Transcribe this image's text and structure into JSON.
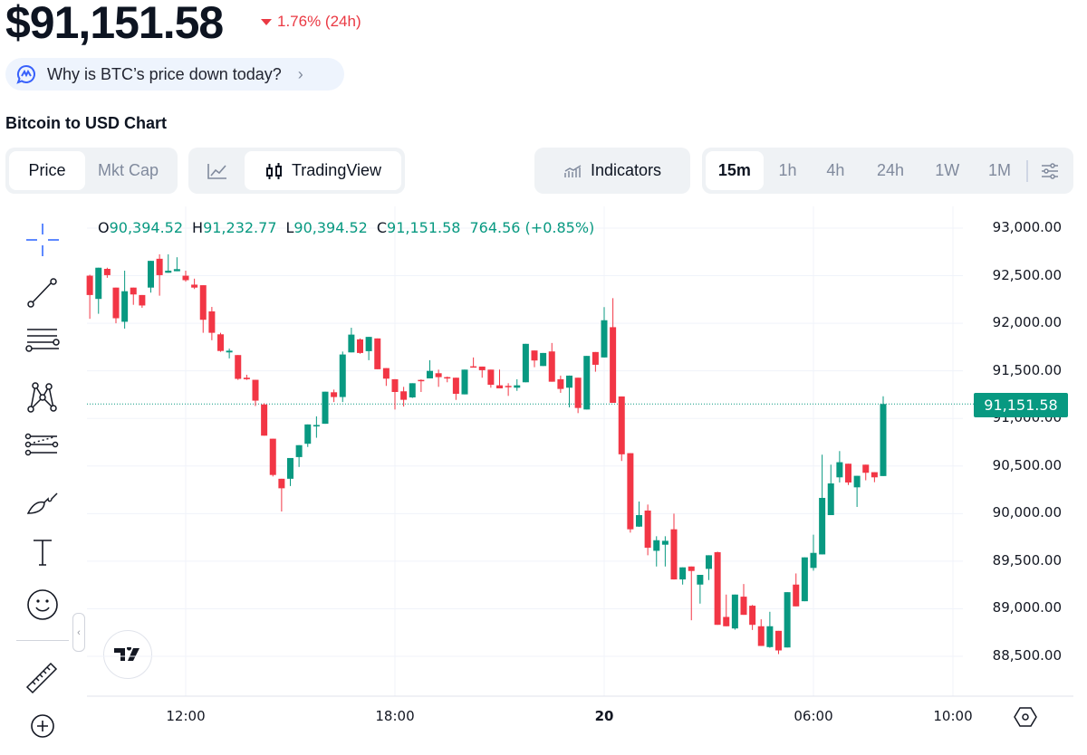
{
  "header": {
    "price": "$91,151.58",
    "change": "1.76% (24h)",
    "change_direction": "down",
    "why_link": "Why is BTC’s price down today?",
    "chart_title": "Bitcoin to USD Chart"
  },
  "toolbar": {
    "data_tabs": [
      "Price",
      "Mkt Cap"
    ],
    "active_data_tab": "Price",
    "chart_types": {
      "line_icon": "line-chart-icon",
      "tradingview": "TradingView"
    },
    "indicators": "Indicators",
    "ranges": [
      "15m",
      "1h",
      "4h",
      "24h",
      "1W",
      "1M"
    ],
    "active_range": "15m",
    "settings_icon": "sliders-icon"
  },
  "drawing_tools": [
    "crosshair-icon",
    "trend-line-icon",
    "horizontal-lines-icon",
    "pattern-icon",
    "fib-icon",
    "brush-icon",
    "text-icon",
    "emoji-icon",
    "ruler-icon",
    "zoom-in-icon"
  ],
  "legend": {
    "o_label": "O",
    "o": "90,394.52",
    "h_label": "H",
    "h": "91,232.77",
    "l_label": "L",
    "l": "90,394.52",
    "c_label": "C",
    "c": "91,151.58",
    "change": "764.56 (+0.85%)"
  },
  "current_price_label": "91,151.58",
  "colors": {
    "up": "#089981",
    "down": "#F23645",
    "change_down": "#ea3943"
  },
  "chart_data": {
    "type": "candlestick",
    "interval": "15m",
    "start_time": "09:15",
    "y_ticks": [
      "93,000.00",
      "92,500.00",
      "92,000.00",
      "91,500.00",
      "91,000.00",
      "90,500.00",
      "90,000.00",
      "89,500.00",
      "89,000.00",
      "88,500.00"
    ],
    "ylim": [
      88300,
      93200
    ],
    "x_ticks": [
      {
        "label": "12:00",
        "index": 11
      },
      {
        "label": "18:00",
        "index": 35
      },
      {
        "label": "20",
        "index": 59
      },
      {
        "label": "06:00",
        "index": 83
      },
      {
        "label": "10:00",
        "index": 99
      }
    ],
    "ohlc": [
      [
        92500,
        92510,
        92047,
        92297
      ],
      [
        92256,
        92584,
        92100,
        92584
      ],
      [
        92572,
        92584,
        92478,
        92506
      ],
      [
        92375,
        92375,
        92000,
        92053
      ],
      [
        92016,
        92553,
        91944,
        92337
      ],
      [
        92375,
        92375,
        92194,
        92303
      ],
      [
        92297,
        92297,
        92162,
        92187
      ],
      [
        92375,
        92656,
        92322,
        92656
      ],
      [
        92678,
        92725,
        92290,
        92506
      ],
      [
        92531,
        92725,
        92531,
        92553
      ],
      [
        92547,
        92694,
        92547,
        92569
      ],
      [
        92500,
        92553,
        92437,
        92453
      ],
      [
        92406,
        92469,
        92360,
        92375
      ],
      [
        92400,
        92400,
        91900,
        92037
      ],
      [
        92125,
        92172,
        91822,
        91900
      ],
      [
        91884,
        91900,
        91700,
        91709
      ],
      [
        91694,
        91734,
        91631,
        91712
      ],
      [
        91666,
        91666,
        91405,
        91416
      ],
      [
        91428,
        91459,
        91405,
        91412
      ],
      [
        91406,
        91406,
        91131,
        91187
      ],
      [
        91147,
        91160,
        90819,
        90819
      ],
      [
        90787,
        90787,
        90390,
        90406
      ],
      [
        90366,
        90366,
        90022,
        90266
      ],
      [
        90366,
        90584,
        90290,
        90584
      ],
      [
        90594,
        90719,
        90490,
        90719
      ],
      [
        90734,
        90937,
        90700,
        90937
      ],
      [
        90916,
        91022,
        90797,
        90931
      ],
      [
        90944,
        91281,
        90944,
        91281
      ],
      [
        91275,
        91303,
        91172,
        91225
      ],
      [
        91225,
        91703,
        91172,
        91672
      ],
      [
        91694,
        91953,
        91694,
        91881
      ],
      [
        91831,
        91840,
        91680,
        91688
      ],
      [
        91707,
        91857,
        91612,
        91857
      ],
      [
        91841,
        91841,
        91517,
        91517
      ],
      [
        91529,
        91529,
        91342,
        91418
      ],
      [
        91412,
        91412,
        91094,
        91278
      ],
      [
        91285,
        91332,
        91125,
        91196
      ],
      [
        91221,
        91370,
        91215,
        91370
      ],
      [
        91405,
        91410,
        91278,
        91400
      ],
      [
        91421,
        91612,
        91421,
        91500
      ],
      [
        91475,
        91513,
        91332,
        91434
      ],
      [
        91434,
        91440,
        91380,
        91427
      ],
      [
        91428,
        91428,
        91195,
        91259
      ],
      [
        91253,
        91513,
        91253,
        91513
      ],
      [
        91548,
        91641,
        91540,
        91545
      ],
      [
        91545,
        91545,
        91428,
        91507
      ],
      [
        91513,
        91513,
        91323,
        91354
      ],
      [
        91348,
        91513,
        91316,
        91316
      ],
      [
        91342,
        91370,
        91237,
        91338
      ],
      [
        91323,
        91412,
        91290,
        91348
      ],
      [
        91380,
        91784,
        91380,
        91784
      ],
      [
        91714,
        91714,
        91538,
        91609
      ],
      [
        91551,
        91688,
        91551,
        91688
      ],
      [
        91704,
        91793,
        91386,
        91386
      ],
      [
        91412,
        91450,
        91269,
        91310
      ],
      [
        91323,
        91450,
        91116,
        91450
      ],
      [
        91428,
        91428,
        91056,
        91110
      ],
      [
        91094,
        91657,
        91094,
        91657
      ],
      [
        91698,
        91698,
        91491,
        91564
      ],
      [
        91641,
        92170,
        91641,
        92032
      ],
      [
        91959,
        92264,
        91164,
        91164
      ],
      [
        91231,
        91231,
        90553,
        90623
      ],
      [
        90635,
        90635,
        89800,
        89835
      ],
      [
        89863,
        90127,
        89860,
        89984
      ],
      [
        90032,
        90095,
        89562,
        89641
      ],
      [
        89609,
        89762,
        89444,
        89720
      ],
      [
        89673,
        89762,
        89444,
        89714
      ],
      [
        89835,
        90000,
        89308,
        89308
      ],
      [
        89308,
        89435,
        89254,
        89435
      ],
      [
        89444,
        89444,
        88879,
        89397
      ],
      [
        89254,
        89356,
        89054,
        89356
      ],
      [
        89419,
        89562,
        89301,
        89562
      ],
      [
        89594,
        89600,
        88831,
        88831
      ],
      [
        88914,
        89149,
        88816,
        88816
      ],
      [
        88793,
        89149,
        88780,
        89149
      ],
      [
        89127,
        89260,
        88936,
        88936
      ],
      [
        89032,
        89040,
        88777,
        88831
      ],
      [
        88816,
        88889,
        88609,
        88609
      ],
      [
        88597,
        88968,
        88590,
        88816
      ],
      [
        88768,
        88768,
        88524,
        88562
      ],
      [
        88593,
        89174,
        88593,
        89174
      ],
      [
        89254,
        89371,
        89025,
        89025
      ],
      [
        89079,
        89540,
        89079,
        89540
      ],
      [
        89429,
        89778,
        89400,
        89587
      ],
      [
        89571,
        90619,
        89571,
        90165
      ],
      [
        89984,
        90514,
        89984,
        90317
      ],
      [
        90381,
        90657,
        90327,
        90540
      ],
      [
        90524,
        90524,
        90300,
        90327
      ],
      [
        90276,
        90397,
        90070,
        90397
      ],
      [
        90514,
        90514,
        90350,
        90429
      ],
      [
        90435,
        90435,
        90330,
        90381
      ],
      [
        90394.52,
        91232.77,
        90394.52,
        91151.58
      ]
    ],
    "last_price": 91151.58
  }
}
